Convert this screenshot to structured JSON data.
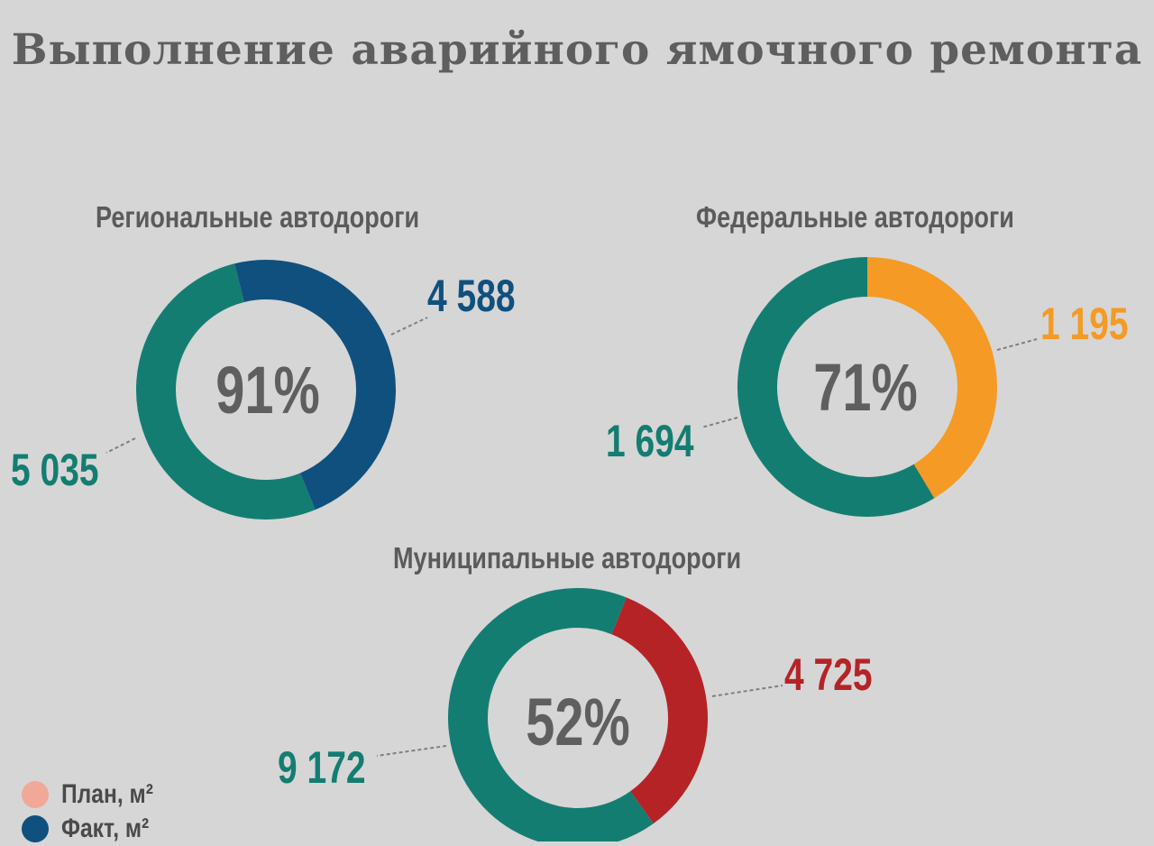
{
  "title": "Выполнение аварийного ямочного ремонта",
  "colors": {
    "plan": "#147d72",
    "regional_fact": "#10507e",
    "federal_fact": "#f49a25",
    "municipal_fact": "#b52327",
    "center_text": "#5f5f5f",
    "leader": "#7f7f7f"
  },
  "legend": {
    "items": [
      {
        "label": "План, м²",
        "color": "#f1a899"
      },
      {
        "label": "Факт, м²",
        "color": "#10507e"
      }
    ]
  },
  "chart_data": [
    {
      "type": "pie",
      "title": "Региональные автодороги",
      "plan": 5035,
      "fact": 4588,
      "percent": 91,
      "plan_label": "5 035",
      "fact_label": "4 588",
      "center_label": "91%",
      "fact_color": "#10507e"
    },
    {
      "type": "pie",
      "title": "Федеральные автодороги",
      "plan": 1694,
      "fact": 1195,
      "percent": 71,
      "plan_label": "1 694",
      "fact_label": "1 195",
      "center_label": "71%",
      "fact_color": "#f49a25"
    },
    {
      "type": "pie",
      "title": "Муниципальные автодороги",
      "plan": 9172,
      "fact": 4725,
      "percent": 52,
      "plan_label": "9 172",
      "fact_label": "4 725",
      "center_label": "52%",
      "fact_color": "#b52327"
    }
  ]
}
